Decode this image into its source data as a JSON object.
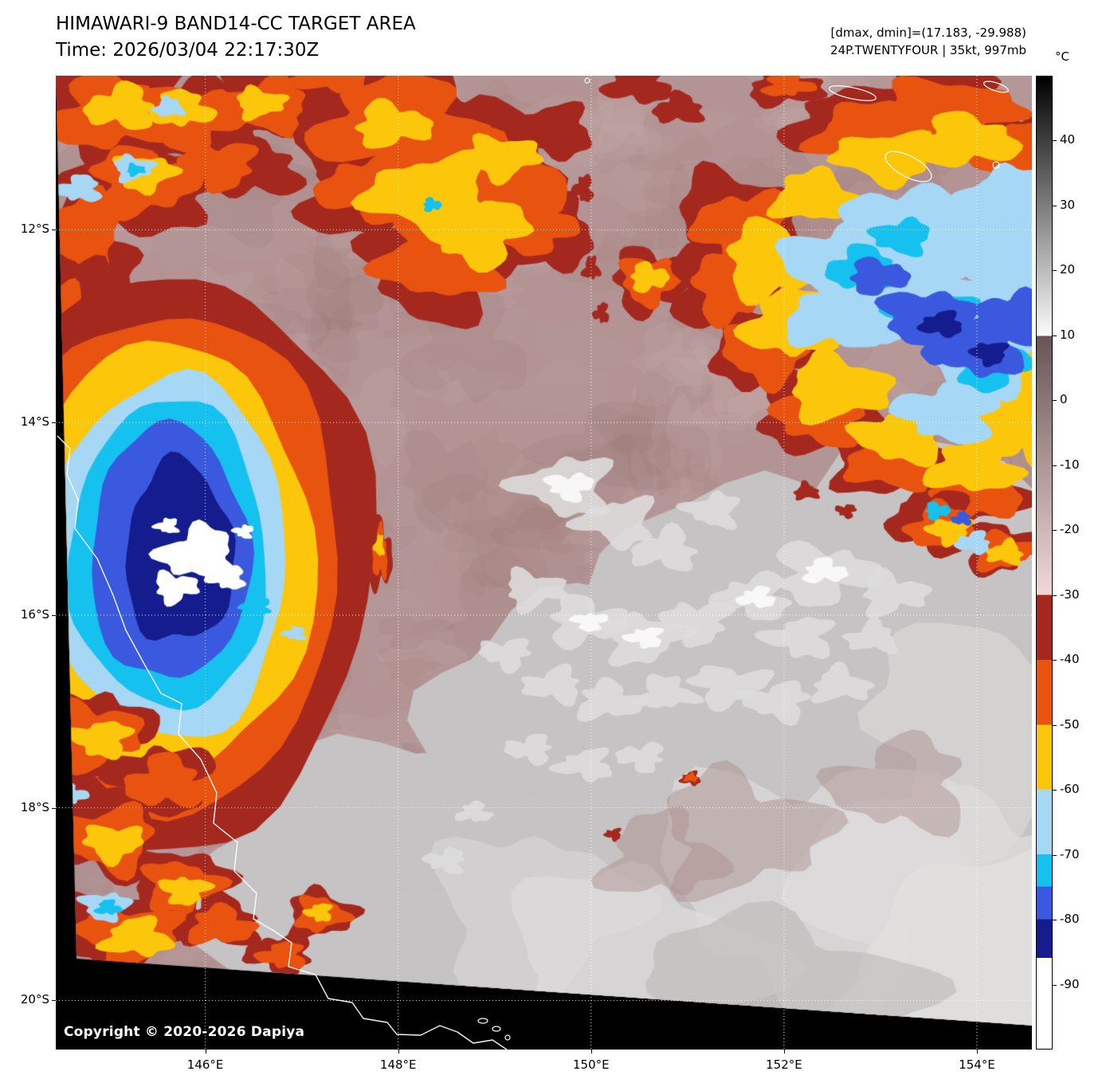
{
  "header": {
    "title_line1": "HIMAWARI-9 BAND14-CC TARGET AREA",
    "title_line2": "Time: 2026/03/04 22:17:30Z",
    "info_line1": "[dmax, dmin]=(17.183, -29.988)",
    "info_line2": "24P.TWENTYFOUR | 35kt, 997mb"
  },
  "colorbar": {
    "unit": "°C",
    "range_c": [
      50,
      -100
    ],
    "ticks": [
      40,
      30,
      20,
      10,
      0,
      -10,
      -20,
      -30,
      -40,
      -50,
      -60,
      -70,
      -80,
      -90
    ],
    "scale": [
      {
        "from": 50,
        "to": 10,
        "start": "#000000",
        "end": "#fbfbfb"
      },
      {
        "from": 10,
        "to": -30,
        "start": "#675555",
        "end": "#f2d8d8"
      },
      {
        "from": -30,
        "to": -40,
        "start": "#a5281e",
        "end": "#a5281e"
      },
      {
        "from": -40,
        "to": -50,
        "start": "#e95310",
        "end": "#e95310"
      },
      {
        "from": -50,
        "to": -60,
        "start": "#fcc70a",
        "end": "#fcc70a"
      },
      {
        "from": -60,
        "to": -70,
        "start": "#a6d7f4",
        "end": "#a6d7f4"
      },
      {
        "from": -70,
        "to": -75,
        "start": "#15c1ef",
        "end": "#15c1ef"
      },
      {
        "from": -75,
        "to": -80,
        "start": "#3a59de",
        "end": "#3a59de"
      },
      {
        "from": -80,
        "to": -86,
        "start": "#141c8e",
        "end": "#141c8e"
      },
      {
        "from": -86,
        "to": -100,
        "start": "#ffffff",
        "end": "#ffffff"
      }
    ]
  },
  "axes": {
    "lat": {
      "values": [
        12,
        14,
        16,
        18,
        20
      ],
      "labels": [
        "12°S",
        "14°S",
        "16°S",
        "18°S",
        "20°S"
      ]
    },
    "lon": {
      "values": [
        146,
        148,
        150,
        152,
        154
      ],
      "labels": [
        "146°E",
        "148°E",
        "150°E",
        "152°E",
        "154°E"
      ]
    }
  },
  "map": {
    "copyright": "Copyright © 2020-2026 Dapiya",
    "background_warm_color": "#b39393",
    "low_cloud_gray": "#c5c3c3"
  }
}
